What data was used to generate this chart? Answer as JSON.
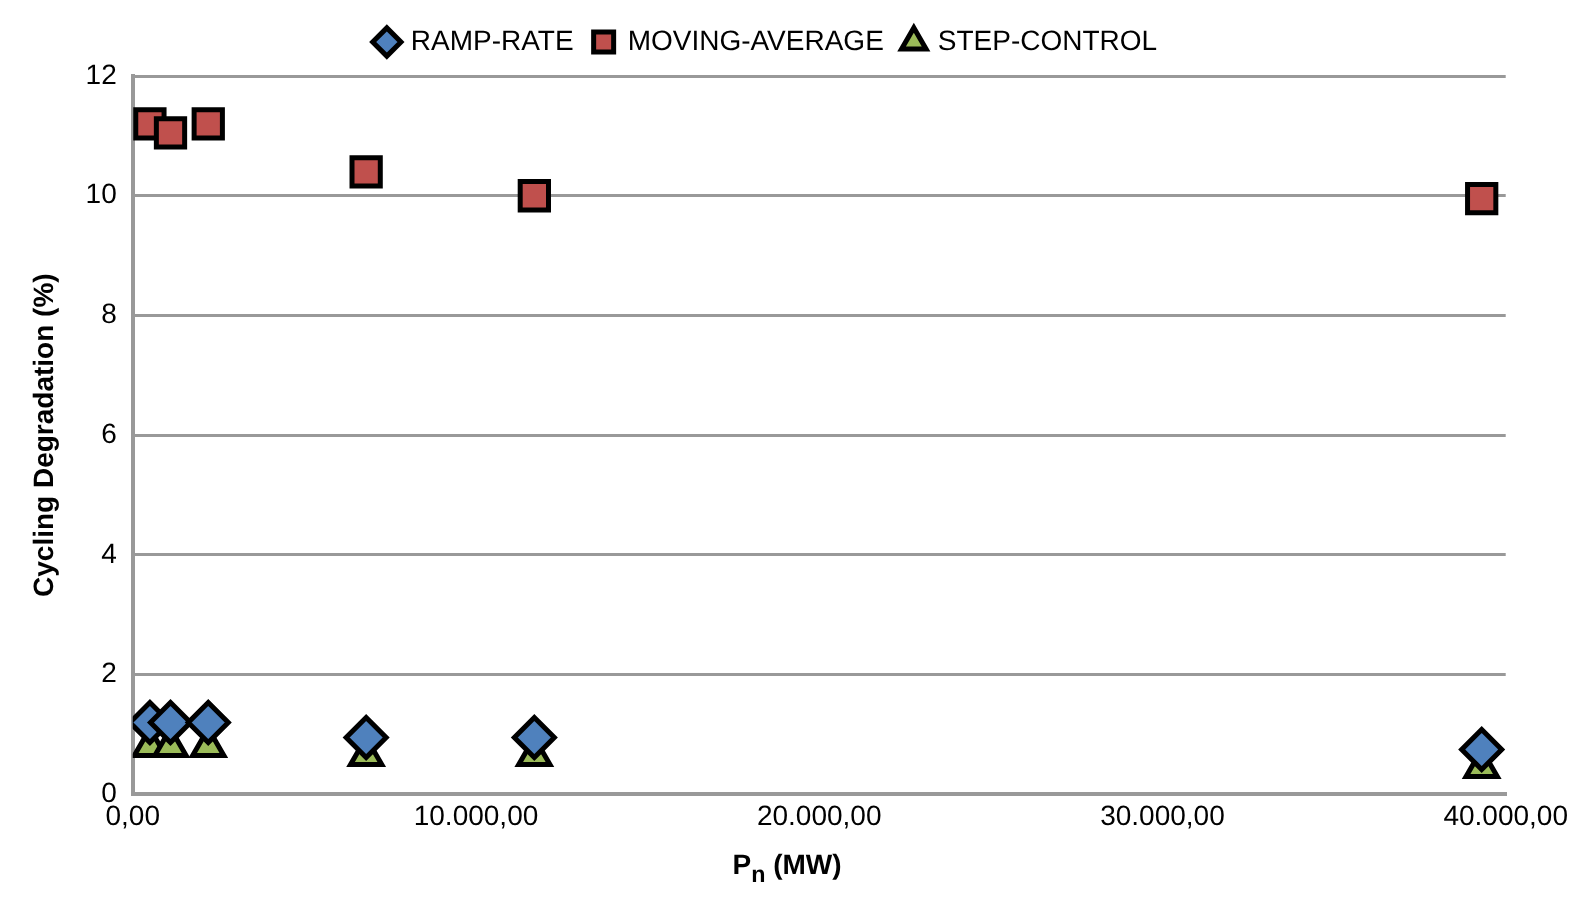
{
  "chart_data": {
    "type": "scatter",
    "ylabel": "Cycling Degradation (%)",
    "xlabel": "P$_{n}$ (MW)",
    "xlim": [
      0,
      40000
    ],
    "xticks": [
      {
        "value": 0,
        "label": "0,00"
      },
      {
        "value": 10000,
        "label": "10.000,00"
      },
      {
        "value": 20000,
        "label": "20.000,00"
      },
      {
        "value": 30000,
        "label": "30.000,00"
      },
      {
        "value": 40000,
        "label": "40.000,00"
      }
    ],
    "ylim": [
      0,
      12
    ],
    "yticks": [
      0,
      2,
      4,
      6,
      8,
      10,
      12
    ],
    "grid": "y",
    "legend": "top",
    "x": [
      500,
      1100,
      2200,
      6800,
      11700,
      39300
    ],
    "series": [
      {
        "name": "RAMP-RATE",
        "color": "#4f81bd",
        "marker": "diamond",
        "values": [
          1.2,
          1.2,
          1.2,
          0.95,
          0.95,
          0.75
        ]
      },
      {
        "name": "MOVING-AVERAGE",
        "color": "#c0504d",
        "marker": "square",
        "values": [
          11.2,
          11.05,
          11.2,
          10.4,
          10.0,
          9.95
        ]
      },
      {
        "name": "STEP-CONTROL",
        "color": "#9bbb59",
        "marker": "triangle",
        "values": [
          0.8,
          0.8,
          0.8,
          0.65,
          0.65,
          0.45
        ]
      }
    ]
  }
}
